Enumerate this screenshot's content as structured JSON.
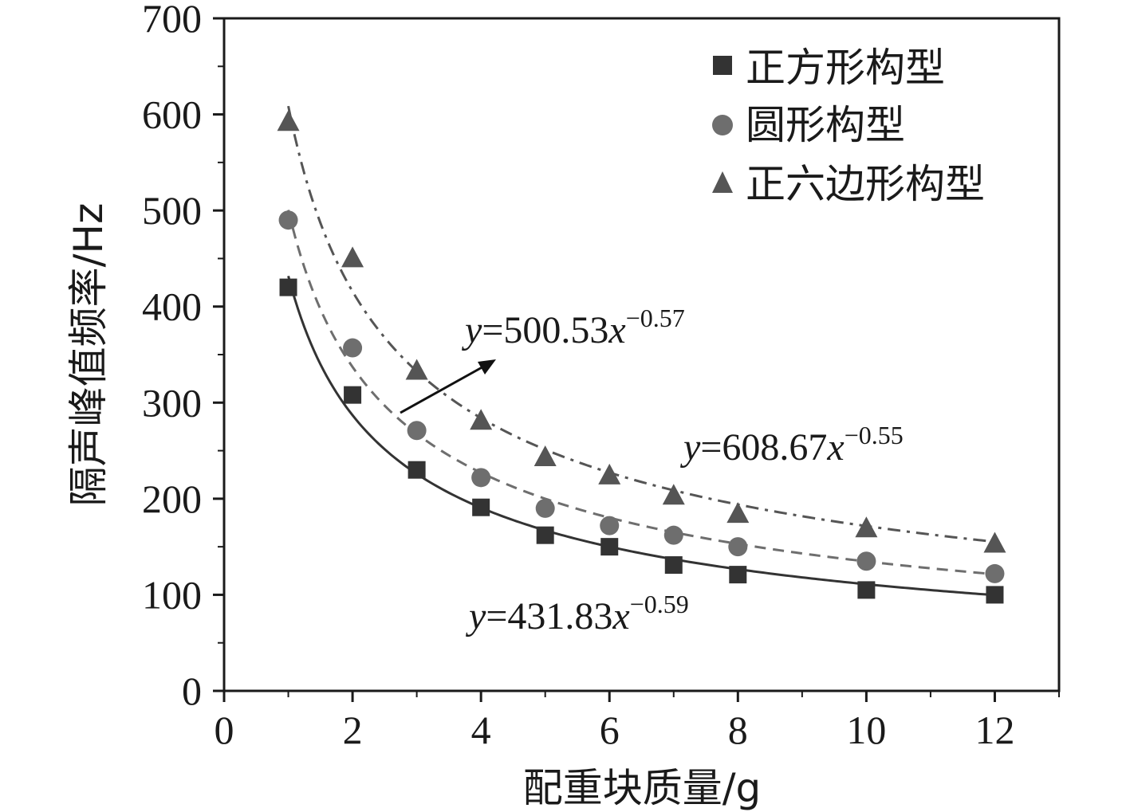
{
  "chart_data": {
    "type": "scatter",
    "xlabel": "配重块质量/g",
    "ylabel": "隔声峰值频率/Hz",
    "xlim": [
      0,
      13
    ],
    "ylim": [
      0,
      700
    ],
    "xticks": [
      0,
      2,
      4,
      6,
      8,
      10,
      12
    ],
    "yticks": [
      0,
      100,
      200,
      300,
      400,
      500,
      600,
      700
    ],
    "legend_position": "top-right",
    "series": [
      {
        "name": "正方形构型",
        "marker": "square",
        "color": "#333333",
        "line_style": "solid",
        "x": [
          1,
          2,
          3,
          4,
          5,
          6,
          7,
          8,
          10,
          12
        ],
        "y": [
          420,
          308,
          230,
          191,
          162,
          150,
          131,
          121,
          105,
          100
        ],
        "fit": {
          "a": 431.83,
          "b": -0.59
        }
      },
      {
        "name": "圆形构型",
        "marker": "circle",
        "color": "#6e6e6e",
        "line_style": "dashed",
        "x": [
          1,
          2,
          3,
          4,
          5,
          6,
          7,
          8,
          10,
          12
        ],
        "y": [
          490,
          357,
          271,
          222,
          190,
          172,
          162,
          150,
          135,
          122
        ],
        "fit": {
          "a": 500.53,
          "b": -0.57
        }
      },
      {
        "name": "正六边形构型",
        "marker": "triangle",
        "color": "#555555",
        "line_style": "dashdot",
        "x": [
          1,
          2,
          3,
          4,
          5,
          6,
          7,
          8,
          10,
          12
        ],
        "y": [
          592,
          450,
          333,
          281,
          243,
          224,
          203,
          184,
          169,
          153
        ],
        "fit": {
          "a": 608.67,
          "b": -0.55
        }
      }
    ],
    "annotations": [
      {
        "series": "圆形构型",
        "y_char": "y",
        "coef": "=500.53",
        "x_char": "x",
        "exp": "−0.57"
      },
      {
        "series": "正六边形构型",
        "y_char": "y",
        "coef": "=608.67",
        "x_char": "x",
        "exp": "−0.55"
      },
      {
        "series": "正方形构型",
        "y_char": "y",
        "coef": "=431.83",
        "x_char": "x",
        "exp": "−0.59"
      }
    ]
  }
}
